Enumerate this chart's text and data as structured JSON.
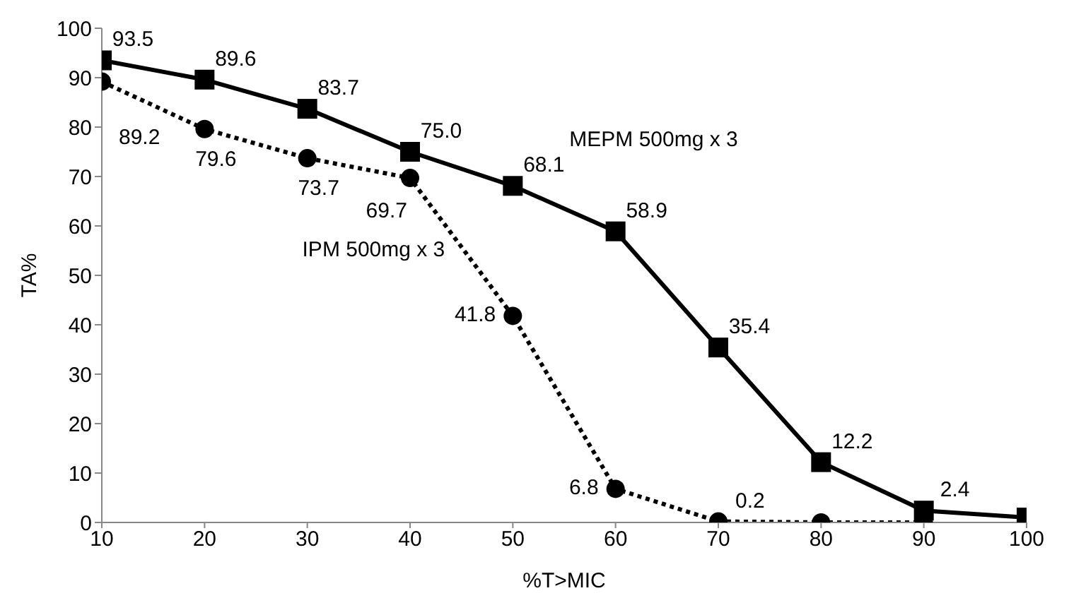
{
  "chart_data": {
    "type": "line",
    "xlabel": "%T>MIC",
    "ylabel": "TA%",
    "x": [
      10,
      20,
      30,
      40,
      50,
      60,
      70,
      80,
      90,
      100
    ],
    "series": [
      {
        "name": "MEPM 500mg x 3",
        "color": "#000000",
        "marker": "square",
        "line_style": "solid",
        "values": [
          93.5,
          89.6,
          83.7,
          75.0,
          68.1,
          58.9,
          35.4,
          12.2,
          2.4,
          1
        ],
        "value_labels": [
          "93.5",
          "89.6",
          "83.7",
          "75.0",
          "68.1",
          "58.9",
          "35.4",
          "12.2",
          "2.4",
          null
        ]
      },
      {
        "name": "IPM 500mg x 3",
        "color": "#000000",
        "marker": "circle",
        "line_style": "dotted",
        "values": [
          89.2,
          79.6,
          73.7,
          69.7,
          41.8,
          6.8,
          0.2,
          0,
          0,
          null
        ],
        "value_labels": [
          "89.2",
          "79.6",
          "73.7",
          "69.7",
          "41.8",
          "6.8",
          "0.2",
          null,
          null,
          null
        ]
      }
    ],
    "xlim": [
      10,
      100
    ],
    "xticks": [
      10,
      20,
      30,
      40,
      50,
      60,
      70,
      80,
      90,
      100
    ],
    "ylim": [
      0,
      100
    ],
    "yticks": [
      0,
      10,
      20,
      30,
      40,
      50,
      60,
      70,
      80,
      90,
      100
    ],
    "grid": false,
    "legend": false
  }
}
